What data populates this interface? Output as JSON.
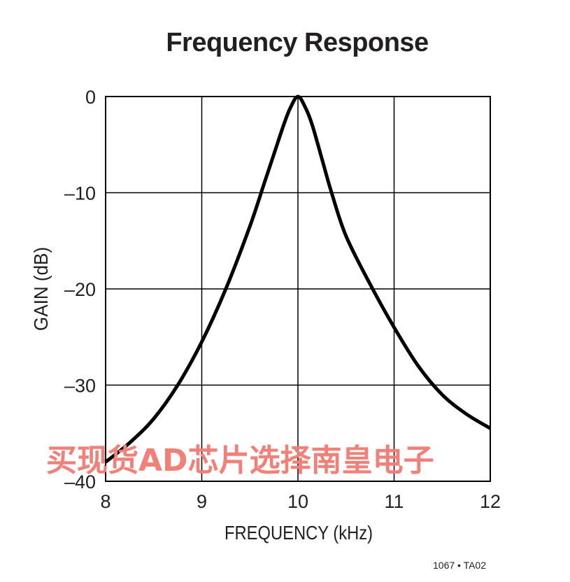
{
  "chart_data": {
    "type": "line",
    "title": "Frequency Response",
    "xlabel": "FREQUENCY (kHz)",
    "ylabel": "GAIN (dB)",
    "xlim": [
      8,
      12
    ],
    "ylim": [
      -40,
      0
    ],
    "xticks": [
      8,
      9,
      10,
      11,
      12
    ],
    "yticks": [
      0,
      -10,
      -20,
      -30,
      -40
    ],
    "ytick_labels": [
      "0",
      "–10",
      "–20",
      "–30",
      "–40"
    ],
    "grid": true,
    "series": [
      {
        "color": "#000000",
        "x": [
          8.0,
          8.25,
          8.5,
          8.75,
          9.0,
          9.25,
          9.5,
          9.65,
          9.75,
          9.85,
          9.92,
          10.0,
          10.08,
          10.15,
          10.25,
          10.35,
          10.5,
          10.75,
          11.0,
          11.25,
          11.5,
          11.75,
          12.0
        ],
        "y": [
          -38.0,
          -36.0,
          -33.5,
          -30.0,
          -25.5,
          -20.0,
          -13.5,
          -9.0,
          -6.0,
          -3.0,
          -1.2,
          0.0,
          -1.2,
          -3.0,
          -6.5,
          -10.0,
          -14.5,
          -19.5,
          -24.0,
          -28.0,
          -31.0,
          -33.0,
          -34.5
        ]
      }
    ]
  },
  "watermark": "买现货AD芯片选择南皇电子",
  "figure_code": "1067 • TA02"
}
